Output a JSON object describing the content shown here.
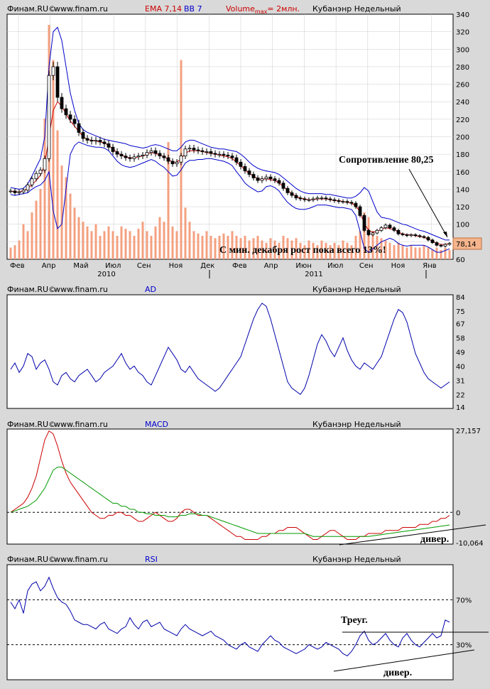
{
  "colors": {
    "background": "#d9d9d9",
    "plot_bg": "#ffffff",
    "grid": "#cccccc",
    "candle": "#000000",
    "ema": "#cc0000",
    "bb": "#0000cc",
    "volume": "#f4a080",
    "ad_line": "#0000aa",
    "macd_line": "#cc0000",
    "signal_line": "#009900",
    "rsi_line": "#0000aa",
    "price_badge": "#f5b48c"
  },
  "panels": {
    "price": {
      "header": {
        "brand": "Финам.RU©",
        "site": "www.finam.ru",
        "ema": "EMA 7,14",
        "bb": "BB 7",
        "volume_prefix": "Volume",
        "volume_sub": "max",
        "volume_suffix": "= 2млн.",
        "ticker": "Кубанэнр Недельный"
      },
      "last_price": "78,14",
      "annotations": {
        "resistance": "Сопротивление 80,25",
        "growth": "С мин. декабря рост пока всего 13%!"
      }
    },
    "ad": {
      "header": {
        "brand": "Финам.RU©",
        "site": "www.finam.ru",
        "name": "AD",
        "ticker": "Кубанэнр Недельный"
      }
    },
    "macd": {
      "header": {
        "brand": "Финам.RU©",
        "site": "www.finam.ru",
        "name": "MACD",
        "ticker": "Кубанэнр Недельный"
      },
      "annotations": {
        "divergence": "дивер."
      }
    },
    "rsi": {
      "header": {
        "brand": "Финам.RU©",
        "site": "www.finam.ru",
        "name": "RSI",
        "ticker": "Кубанэнр Недельный"
      },
      "annotations": {
        "triangle": "Треуг.",
        "divergence": "дивер."
      }
    }
  },
  "chart_data": [
    {
      "type": "candlestick",
      "x_labels": [
        "Фев",
        "Апр",
        "Май",
        "Июл",
        "Сен",
        "Ноя",
        "Дек",
        "Фев",
        "Апр",
        "Июн",
        "Июл",
        "Сен",
        "Ноя",
        "Янв"
      ],
      "year_labels": [
        "2010",
        "2011"
      ],
      "y_ticks": [
        60,
        80,
        100,
        120,
        140,
        160,
        180,
        200,
        220,
        240,
        260,
        280,
        300,
        320,
        340
      ],
      "ylim": [
        60,
        340
      ],
      "weeks": 104,
      "close": [
        138,
        136,
        137,
        139,
        145,
        152,
        158,
        162,
        175,
        270,
        280,
        245,
        232,
        225,
        220,
        215,
        205,
        198,
        196,
        195,
        196,
        194,
        192,
        188,
        183,
        180,
        178,
        176,
        175,
        177,
        178,
        179,
        182,
        184,
        181,
        178,
        176,
        172,
        169,
        171,
        178,
        186,
        187,
        185,
        184,
        183,
        183,
        181,
        180,
        180,
        179,
        178,
        176,
        171,
        166,
        161,
        157,
        153,
        150,
        152,
        154,
        152,
        150,
        147,
        141,
        136,
        133,
        130,
        129,
        128,
        128,
        129,
        130,
        130,
        129,
        128,
        127,
        126,
        126,
        125,
        124,
        120,
        110,
        93,
        88,
        90,
        93,
        96,
        99,
        96,
        93,
        89,
        88,
        87,
        88,
        87,
        86,
        85,
        82,
        79,
        76,
        75,
        77,
        78.14
      ],
      "ema": [
        138,
        137,
        137,
        138,
        141,
        145,
        150,
        156,
        168,
        200,
        230,
        240,
        235,
        226,
        218,
        212,
        206,
        200,
        197,
        196,
        195,
        194,
        193,
        190,
        186,
        182,
        179,
        177,
        176,
        176,
        177,
        178,
        180,
        182,
        181,
        179,
        177,
        174,
        171,
        171,
        175,
        181,
        184,
        184,
        184,
        183,
        182,
        181,
        180,
        179,
        178,
        177,
        175,
        171,
        167,
        162,
        158,
        155,
        152,
        151,
        152,
        151,
        150,
        147,
        143,
        139,
        135,
        132,
        130,
        129,
        128,
        128,
        129,
        129,
        129,
        128,
        127,
        127,
        126,
        125,
        124,
        121,
        114,
        101,
        93,
        91,
        92,
        94,
        96,
        95,
        94,
        91,
        89,
        88,
        88,
        87,
        86,
        85,
        83,
        81,
        78,
        77,
        77,
        78
      ],
      "bb_upper": [
        142,
        141,
        140,
        141,
        146,
        155,
        165,
        175,
        200,
        280,
        320,
        325,
        310,
        280,
        250,
        230,
        215,
        208,
        205,
        203,
        201,
        199,
        197,
        196,
        195,
        194,
        193,
        192,
        190,
        189,
        188,
        187,
        188,
        190,
        191,
        190,
        188,
        186,
        184,
        184,
        188,
        194,
        196,
        196,
        194,
        192,
        190,
        188,
        187,
        186,
        186,
        185,
        184,
        183,
        180,
        176,
        171,
        167,
        164,
        162,
        161,
        160,
        159,
        157,
        153,
        149,
        145,
        141,
        138,
        136,
        135,
        135,
        135,
        135,
        134,
        134,
        133,
        132,
        131,
        130,
        130,
        132,
        136,
        142,
        138,
        126,
        114,
        108,
        107,
        106,
        104,
        102,
        100,
        99,
        97,
        95,
        93,
        92,
        90,
        88,
        86,
        84,
        82,
        82
      ],
      "bb_lower": [
        134,
        133,
        134,
        135,
        136,
        140,
        143,
        145,
        150,
        160,
        115,
        95,
        100,
        140,
        180,
        190,
        194,
        192,
        190,
        189,
        188,
        188,
        187,
        184,
        178,
        172,
        168,
        166,
        165,
        166,
        168,
        170,
        172,
        174,
        172,
        168,
        165,
        160,
        155,
        156,
        162,
        170,
        173,
        173,
        174,
        174,
        175,
        175,
        174,
        173,
        172,
        170,
        167,
        160,
        154,
        147,
        143,
        140,
        137,
        138,
        143,
        144,
        142,
        138,
        131,
        125,
        121,
        118,
        117,
        117,
        118,
        120,
        122,
        122,
        122,
        121,
        120,
        119,
        119,
        118,
        117,
        110,
        92,
        72,
        68,
        72,
        76,
        80,
        82,
        84,
        82,
        78,
        76,
        75,
        76,
        76,
        76,
        76,
        74,
        71,
        68,
        68,
        70,
        72
      ],
      "volume_rel": [
        0.05,
        0.06,
        0.08,
        0.15,
        0.12,
        0.2,
        0.25,
        0.3,
        0.6,
        1.0,
        0.85,
        0.55,
        0.4,
        0.35,
        0.28,
        0.22,
        0.18,
        0.16,
        0.14,
        0.12,
        0.15,
        0.1,
        0.12,
        0.14,
        0.12,
        0.1,
        0.14,
        0.13,
        0.12,
        0.1,
        0.13,
        0.16,
        0.12,
        0.1,
        0.14,
        0.18,
        0.16,
        0.5,
        0.14,
        0.12,
        0.85,
        0.22,
        0.16,
        0.12,
        0.11,
        0.1,
        0.12,
        0.1,
        0.09,
        0.1,
        0.11,
        0.1,
        0.12,
        0.1,
        0.09,
        0.1,
        0.08,
        0.09,
        0.1,
        0.08,
        0.07,
        0.09,
        0.08,
        0.07,
        0.1,
        0.09,
        0.08,
        0.09,
        0.07,
        0.06,
        0.08,
        0.07,
        0.06,
        0.08,
        0.07,
        0.06,
        0.07,
        0.06,
        0.08,
        0.07,
        0.06,
        0.1,
        0.12,
        0.2,
        0.18,
        0.12,
        0.1,
        0.09,
        0.08,
        0.07,
        0.06,
        0.07,
        0.06,
        0.05,
        0.06,
        0.05,
        0.05,
        0.06,
        0.05,
        0.04,
        0.05,
        0.04,
        0.05,
        0.04
      ]
    },
    {
      "type": "line",
      "name": "AD",
      "y_ticks": [
        14,
        22,
        31,
        40,
        49,
        58,
        67,
        75,
        84
      ],
      "ylim": [
        14,
        84
      ],
      "values": [
        38,
        42,
        36,
        40,
        48,
        46,
        38,
        42,
        44,
        38,
        30,
        28,
        34,
        36,
        32,
        30,
        34,
        36,
        38,
        34,
        30,
        32,
        36,
        38,
        40,
        44,
        48,
        42,
        38,
        40,
        36,
        34,
        30,
        28,
        34,
        40,
        46,
        52,
        48,
        44,
        38,
        36,
        40,
        36,
        32,
        30,
        28,
        26,
        24,
        26,
        30,
        34,
        38,
        42,
        46,
        54,
        62,
        70,
        76,
        80,
        78,
        70,
        60,
        50,
        40,
        30,
        26,
        24,
        22,
        26,
        34,
        44,
        54,
        60,
        56,
        50,
        46,
        52,
        58,
        50,
        44,
        40,
        38,
        42,
        40,
        38,
        42,
        46,
        54,
        62,
        70,
        76,
        74,
        68,
        58,
        48,
        42,
        36,
        32,
        30,
        28,
        26,
        28,
        30
      ]
    },
    {
      "type": "line",
      "name": "MACD",
      "y_ticks": [
        -10.064,
        0,
        27.157
      ],
      "ylim": [
        -10.064,
        27.157
      ],
      "series": [
        {
          "values": [
            0,
            1,
            2,
            3,
            5,
            8,
            12,
            18,
            24,
            27,
            26,
            22,
            17,
            13,
            10,
            8,
            6,
            4,
            2,
            0,
            -1,
            -2,
            -2,
            -1,
            -1,
            0,
            0,
            -1,
            -1,
            -2,
            -3,
            -3,
            -2,
            -1,
            0,
            -1,
            -2,
            -3,
            -3,
            -2,
            0,
            1,
            1,
            0,
            -1,
            -1,
            -1,
            -2,
            -3,
            -4,
            -5,
            -6,
            -7,
            -8,
            -8,
            -9,
            -9,
            -9,
            -9,
            -8,
            -8,
            -7,
            -7,
            -6,
            -6,
            -5,
            -5,
            -5,
            -6,
            -7,
            -8,
            -9,
            -9,
            -8,
            -7,
            -6,
            -6,
            -7,
            -8,
            -9,
            -9,
            -9,
            -8,
            -8,
            -7,
            -7,
            -7,
            -7,
            -6,
            -6,
            -6,
            -6,
            -5,
            -5,
            -5,
            -5,
            -4,
            -4,
            -4,
            -3,
            -3,
            -2,
            -2,
            -1
          ]
        },
        {
          "values": [
            0,
            0.5,
            1,
            1.5,
            2,
            3,
            4,
            6,
            8,
            11,
            14,
            15,
            15,
            14,
            13,
            12,
            11,
            10,
            9,
            8,
            7,
            6,
            5,
            4,
            3,
            3,
            2,
            2,
            1,
            1,
            0,
            0,
            -0.5,
            -0.5,
            -1,
            -1,
            -1,
            -1.5,
            -1.5,
            -1.5,
            -1,
            -1,
            -0.5,
            -0.5,
            -0.5,
            -1,
            -1,
            -1.5,
            -2,
            -2.5,
            -3,
            -3.5,
            -4,
            -4.5,
            -5,
            -5.5,
            -6,
            -6.5,
            -7,
            -7,
            -7,
            -7,
            -7,
            -7,
            -7,
            -7,
            -7,
            -7,
            -7,
            -7,
            -7.5,
            -8,
            -8,
            -8,
            -8,
            -8,
            -8,
            -8,
            -8,
            -8,
            -8,
            -8,
            -8,
            -8,
            -8,
            -7.8,
            -7.6,
            -7.4,
            -7.2,
            -7,
            -6.8,
            -6.6,
            -6.4,
            -6.2,
            -6,
            -5.8,
            -5.6,
            -5.4,
            -5.2,
            -5,
            -4.8,
            -4.6,
            -4.4,
            -4.2
          ]
        }
      ]
    },
    {
      "type": "line",
      "name": "RSI",
      "y_ticks": [
        30,
        70
      ],
      "ylim": [
        0,
        100
      ],
      "values": [
        68,
        62,
        70,
        58,
        78,
        84,
        86,
        78,
        82,
        90,
        80,
        72,
        68,
        66,
        60,
        52,
        50,
        48,
        48,
        46,
        44,
        48,
        50,
        44,
        42,
        40,
        44,
        46,
        54,
        48,
        44,
        50,
        52,
        46,
        48,
        50,
        44,
        42,
        40,
        38,
        44,
        48,
        44,
        42,
        40,
        38,
        40,
        42,
        38,
        36,
        34,
        30,
        28,
        26,
        30,
        32,
        28,
        26,
        24,
        30,
        34,
        38,
        34,
        32,
        28,
        26,
        24,
        22,
        24,
        26,
        30,
        28,
        26,
        28,
        32,
        30,
        28,
        26,
        22,
        20,
        24,
        30,
        38,
        42,
        34,
        30,
        32,
        36,
        40,
        34,
        30,
        28,
        36,
        40,
        34,
        30,
        28,
        32,
        36,
        40,
        36,
        38,
        52,
        50
      ]
    }
  ]
}
